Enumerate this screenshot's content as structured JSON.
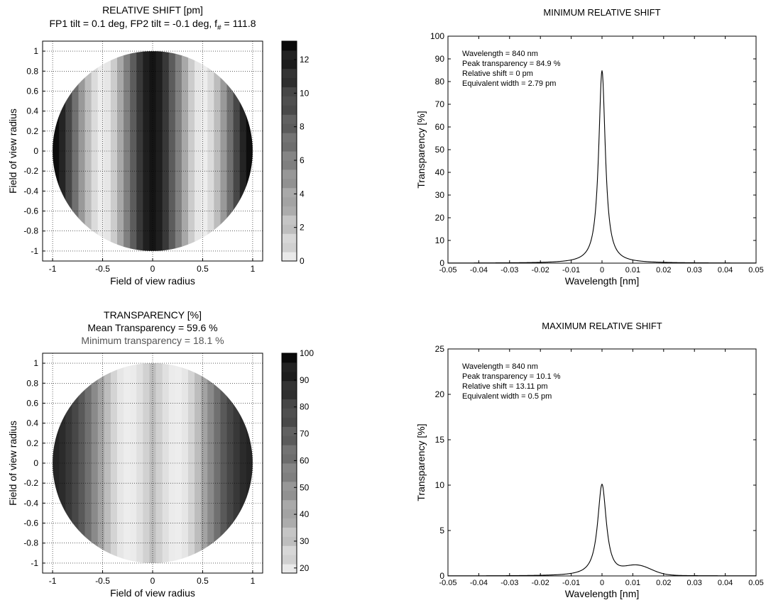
{
  "chart_data": [
    {
      "type": "heatmap",
      "panel": "top-left",
      "title_lines": [
        "RELATIVE SHIFT [pm]",
        "FP1 tilt = 0.1 deg, FP2 tilt = -0.1 deg, f",
        "#",
        " = 111.8"
      ],
      "xlabel": "Field of view radius",
      "ylabel": "Field of view radius",
      "x_ticks": [
        "-1",
        "-0.5",
        "0",
        "0.5",
        "1"
      ],
      "y_ticks": [
        "1",
        "0.8",
        "0.6",
        "0.4",
        "0.2",
        "0",
        "-0.2",
        "-0.4",
        "-0.6",
        "-0.8",
        "-1"
      ],
      "xlim": [
        -1.1,
        1.1
      ],
      "ylim": [
        -1.1,
        1.1
      ],
      "grid": true,
      "colorbar": {
        "min": 0,
        "max": 13.1,
        "ticks": [
          "12",
          "10",
          "8",
          "6",
          "4",
          "2",
          "0"
        ],
        "tick_values": [
          12,
          10,
          8,
          6,
          4,
          2,
          0
        ]
      },
      "stripe_gray": [
        0.05,
        0.14,
        0.28,
        0.44,
        0.6,
        0.74,
        0.86,
        0.93,
        0.9,
        0.8,
        0.66,
        0.5,
        0.36,
        0.22,
        0.12,
        0.08,
        0.12,
        0.22,
        0.36,
        0.5,
        0.66,
        0.8,
        0.9,
        0.93,
        0.86,
        0.74,
        0.6,
        0.44,
        0.28,
        0.14,
        0.05
      ]
    },
    {
      "type": "line",
      "panel": "top-right",
      "title": "MINIMUM RELATIVE SHIFT",
      "xlabel": "Wavelength [nm]",
      "ylabel": "Transparency [%]",
      "x_ticks": [
        "-0.05",
        "-0.04",
        "-0.03",
        "-0.02",
        "-0.01",
        "0",
        "0.01",
        "0.02",
        "0.03",
        "0.04",
        "0.05"
      ],
      "y_ticks": [
        "100",
        "90",
        "80",
        "70",
        "60",
        "50",
        "40",
        "30",
        "20",
        "10",
        "0"
      ],
      "xlim": [
        -0.05,
        0.05
      ],
      "ylim": [
        0,
        100
      ],
      "annotations": [
        "Wavelength = 840 nm",
        "Peak transparency = 84.9 %",
        "Relative shift = 0 pm",
        "Equivalent width = 2.79 pm"
      ],
      "series": [
        {
          "peak": 84.9,
          "center": 0,
          "hwhm": 0.0013,
          "shoulder_amp": 0,
          "shoulder_center": 0,
          "shoulder_sigma": 0.004
        }
      ]
    },
    {
      "type": "heatmap",
      "panel": "bottom-left",
      "title_lines": [
        "TRANSPARENCY [%]",
        "Mean Transparency = 59.6 %",
        "Minimum transparency = 18.1 %"
      ],
      "xlabel": "Field of view radius",
      "ylabel": "Field of view radius",
      "x_ticks": [
        "-1",
        "-0.5",
        "0",
        "0.5",
        "1"
      ],
      "y_ticks": [
        "1",
        "0.8",
        "0.6",
        "0.4",
        "0.2",
        "0",
        "-0.2",
        "-0.4",
        "-0.6",
        "-0.8",
        "-1"
      ],
      "xlim": [
        -1.1,
        1.1
      ],
      "ylim": [
        -1.1,
        1.1
      ],
      "grid": true,
      "colorbar": {
        "min": 18.1,
        "max": 100,
        "ticks": [
          "100",
          "90",
          "80",
          "70",
          "60",
          "50",
          "40",
          "30",
          "20"
        ],
        "tick_values": [
          100,
          90,
          80,
          70,
          60,
          50,
          40,
          30,
          20
        ]
      },
      "stripe_gray": [
        0.14,
        0.17,
        0.22,
        0.28,
        0.35,
        0.44,
        0.54,
        0.64,
        0.74,
        0.83,
        0.9,
        0.93,
        0.92,
        0.88,
        0.82,
        0.75,
        0.82,
        0.88,
        0.92,
        0.93,
        0.9,
        0.83,
        0.74,
        0.64,
        0.54,
        0.44,
        0.35,
        0.28,
        0.22,
        0.17,
        0.14
      ]
    },
    {
      "type": "line",
      "panel": "bottom-right",
      "title": "MAXIMUM RELATIVE SHIFT",
      "xlabel": "Wavelength [nm]",
      "ylabel": "Transparency [%]",
      "x_ticks": [
        "-0.05",
        "-0.04",
        "-0.03",
        "-0.02",
        "-0.01",
        "0",
        "0.01",
        "0.02",
        "0.03",
        "0.04",
        "0.05"
      ],
      "y_ticks": [
        "25",
        "20",
        "15",
        "10",
        "5",
        "0"
      ],
      "xlim": [
        -0.05,
        0.05
      ],
      "ylim": [
        0,
        25
      ],
      "annotations": [
        "Wavelength = 840 nm",
        "Peak transparency = 10.1 %",
        "Relative shift = 13.11 pm",
        "Equivalent width = 0.5 pm"
      ],
      "series": [
        {
          "peak": 10.1,
          "center": 0,
          "hwhm": 0.0017,
          "shoulder_amp": 1.0,
          "shoulder_center": 0.0115,
          "shoulder_sigma": 0.0045
        }
      ]
    }
  ]
}
